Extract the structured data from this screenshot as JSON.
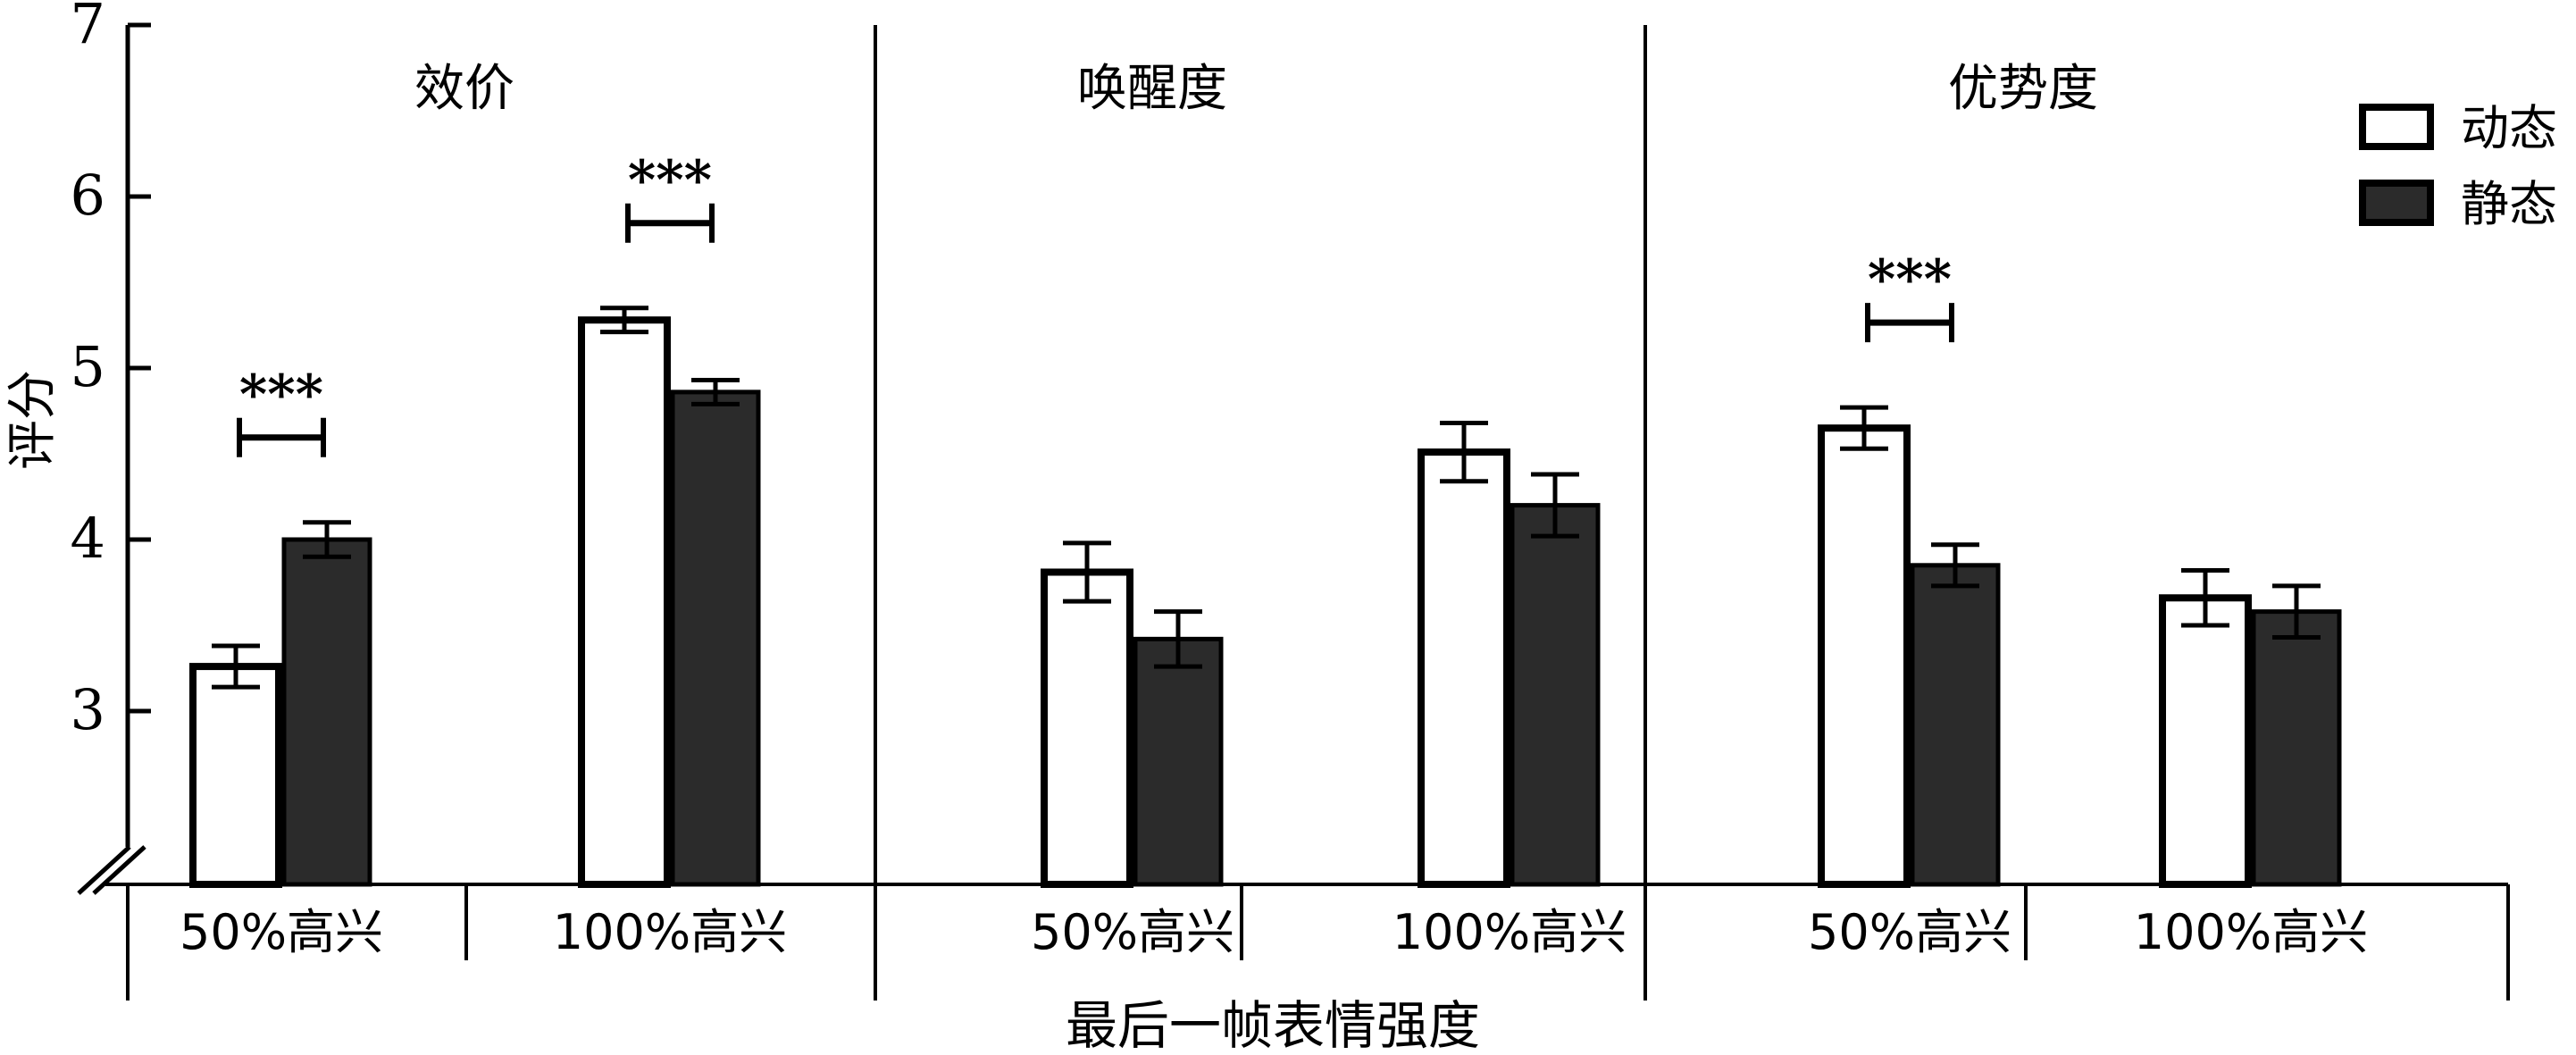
{
  "chart_data": {
    "type": "bar",
    "ylabel": "评分",
    "xlabel": "最后一帧表情强度",
    "ylim": [
      2,
      7
    ],
    "yticks": [
      "3",
      "4",
      "5",
      "6",
      "7"
    ],
    "axis_break": true,
    "legend": {
      "placement": "top-right",
      "items": [
        {
          "label": "动态",
          "color": "#ffffff"
        },
        {
          "label": "静态",
          "color": "#2b2b2b"
        }
      ]
    },
    "series_colors": {
      "dynamic": "#ffffff",
      "static": "#2b2b2b"
    },
    "panels": [
      {
        "title": "效价",
        "groups": [
          {
            "category": "50%高兴",
            "dynamic": 3.26,
            "dynamic_err": 0.12,
            "static": 4.0,
            "static_err": 0.1,
            "sig": "***"
          },
          {
            "category": "100%高兴",
            "dynamic": 5.28,
            "dynamic_err": 0.07,
            "static": 4.86,
            "static_err": 0.07,
            "sig": "***"
          }
        ]
      },
      {
        "title": "唤醒度",
        "groups": [
          {
            "category": "50%高兴",
            "dynamic": 3.81,
            "dynamic_err": 0.17,
            "static": 3.42,
            "static_err": 0.16,
            "sig": ""
          },
          {
            "category": "100%高兴",
            "dynamic": 4.51,
            "dynamic_err": 0.17,
            "static": 4.2,
            "static_err": 0.18,
            "sig": ""
          }
        ]
      },
      {
        "title": "优势度",
        "groups": [
          {
            "category": "50%高兴",
            "dynamic": 4.65,
            "dynamic_err": 0.12,
            "static": 3.85,
            "static_err": 0.12,
            "sig": "***"
          },
          {
            "category": "100%高兴",
            "dynamic": 3.66,
            "dynamic_err": 0.16,
            "static": 3.58,
            "static_err": 0.15,
            "sig": ""
          }
        ]
      }
    ]
  }
}
